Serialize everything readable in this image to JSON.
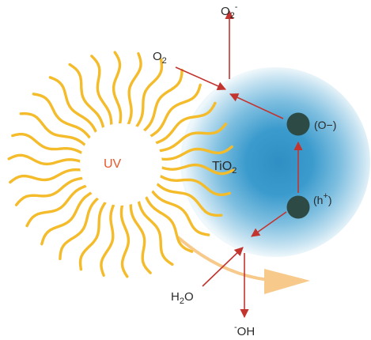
{
  "diagram": {
    "sun_label": "UV",
    "particle_label": {
      "base": "TiO",
      "sub": "2"
    },
    "top_product": {
      "base": "O",
      "sub": "2",
      "sup": "-"
    },
    "oxygen_input": {
      "base": "O",
      "sub": "2"
    },
    "electron_site": "(O−)",
    "hole_site": {
      "pre": "(h",
      "sup": "+",
      "post": ")"
    },
    "water_input": {
      "pre": "H",
      "sub": "2",
      "post": "O"
    },
    "bottom_product": {
      "sup": "-",
      "base": "OH"
    }
  },
  "colors": {
    "sun_ray": "#f4bb2a",
    "sun_text": "#e8572a",
    "particle_core": "#2f8fc4",
    "particle_edge": "#dfeef7",
    "arrow": "#c3342f",
    "site": "#2d4a45",
    "light_arrow": "#f7c98b"
  }
}
